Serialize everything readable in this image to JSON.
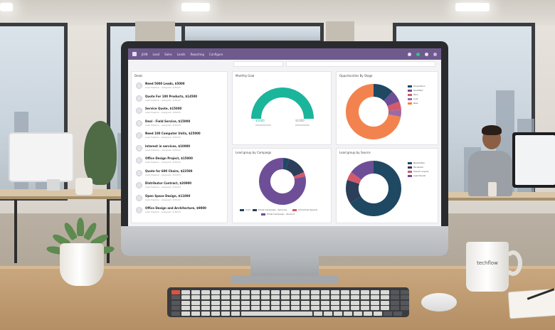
{
  "app": {
    "logo_text": "JOIN",
    "menu": [
      "Lead",
      "Sales",
      "Leads",
      "Reporting",
      "Configure"
    ]
  },
  "deals": {
    "title": "Deals",
    "items": [
      {
        "name": "Need 5000 Leads, $5000",
        "sub": "Lead Pipeline - Assigned, 3/30/23"
      },
      {
        "name": "Quote For 100 Products, $14500",
        "sub": "Lead Pipeline - Assigned, 3/30/23"
      },
      {
        "name": "Service Quote, $15000",
        "sub": "Lead Pipeline - Assigned, 3/30/23"
      },
      {
        "name": "Deal - Field Service, $15000",
        "sub": "Lead Pipeline - Assigned, 3/30/23"
      },
      {
        "name": "Need 100 Computer Units, $25000",
        "sub": "Lead Pipeline - Assigned, 3/30/23"
      },
      {
        "name": "Interest in services, $10000",
        "sub": "Lead Pipeline - Assigned, 3/30/23"
      },
      {
        "name": "Office Design Project, $15000",
        "sub": "Lead Pipeline - Assigned, 3/30/23"
      },
      {
        "name": "Quote for 600 Chairs, $22500",
        "sub": "Lead Pipeline - Assigned, 3/30/23"
      },
      {
        "name": "Distributor Contract, $20000",
        "sub": "Lead Pipeline - Assigned, 3/30/23"
      },
      {
        "name": "Open Space Design, $11000",
        "sub": "Lead Pipeline - Assigned, 3/30/23"
      },
      {
        "name": "Office Design and Architecture, $9000",
        "sub": "Lead Pipeline - Assigned, 3/30/23"
      }
    ]
  },
  "monthly_goal": {
    "title": "Monthly Goal",
    "left_label": "$5000",
    "right_label": "$1000"
  },
  "opps_by_stage": {
    "title": "Opportunities By Stage",
    "legend": [
      "Proposition",
      "Qualified",
      "Won",
      "Lost",
      "New"
    ]
  },
  "lead_by_campaign": {
    "title": "Lead group by Campaign",
    "legend": [
      "Cold",
      "Email Campaign - Services",
      "Christmas Special",
      "Email Campaign - Product"
    ]
  },
  "lead_by_source": {
    "title": "Lead group by Source",
    "legend": [
      "Newsletter",
      "Facebook",
      "Search engine",
      "Lead Recall"
    ]
  },
  "mug": {
    "brand": "techflow"
  },
  "colors": {
    "topbar": "#6f5a8e",
    "navy": "#1f4863",
    "purple": "#6e4f97",
    "teal": "#1bb59c",
    "orange": "#f2834e",
    "pink": "#d4596b",
    "mauve": "#9b6aa6"
  },
  "chart_data": [
    {
      "type": "pie",
      "title": "Monthly Goal",
      "categories": [
        "Achieved",
        "Remaining"
      ],
      "values": [
        100,
        0
      ]
    },
    {
      "type": "pie",
      "title": "Opportunities By Stage",
      "categories": [
        "Proposition",
        "Qualified",
        "Won",
        "Lost",
        "New"
      ],
      "values": [
        12,
        7,
        5,
        4,
        72
      ]
    },
    {
      "type": "pie",
      "title": "Lead group by Campaign",
      "categories": [
        "Cold",
        "Email Campaign - Services",
        "Christmas Special",
        "Email Campaign - Product"
      ],
      "values": [
        4,
        14,
        3,
        79
      ]
    },
    {
      "type": "pie",
      "title": "Lead group by Source",
      "categories": [
        "Newsletter",
        "Facebook",
        "Search engine",
        "Lead Recall"
      ],
      "values": [
        66,
        14,
        5,
        15
      ]
    }
  ]
}
